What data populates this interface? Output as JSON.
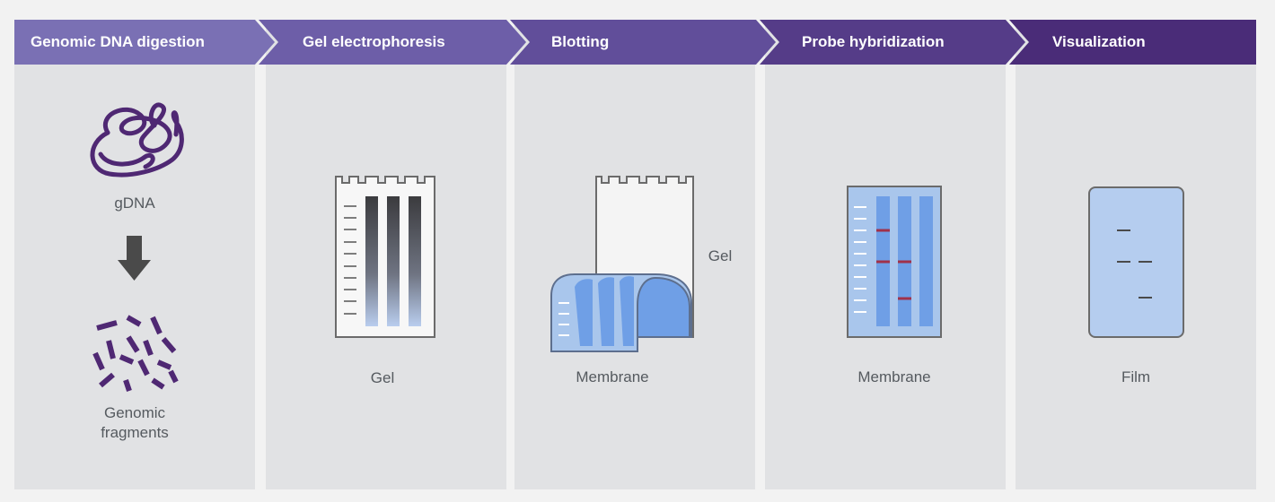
{
  "steps": [
    {
      "label": "Genomic DNA digestion",
      "color": "#7a70b4"
    },
    {
      "label": "Gel electrophoresis",
      "color": "#6d5ea8"
    },
    {
      "label": "Blotting",
      "color": "#614e9a"
    },
    {
      "label": "Probe hybridization",
      "color": "#553c88"
    },
    {
      "label": "Visualization",
      "color": "#4a2c78"
    }
  ],
  "captions": {
    "gdna": "gDNA",
    "fragments_line1": "Genomic",
    "fragments_line2": "fragments",
    "gel": "Gel",
    "blot_gel": "Gel",
    "blot_membrane": "Membrane",
    "probe_membrane": "Membrane",
    "film": "Film"
  },
  "colors": {
    "dna": "#4f2873",
    "arrow": "#4a4a4a",
    "membrane_fill": "#a9c6ec",
    "membrane_lane": "#6f9fe6",
    "band": "#a0314a",
    "gel_bg": "#f7f7f7"
  }
}
